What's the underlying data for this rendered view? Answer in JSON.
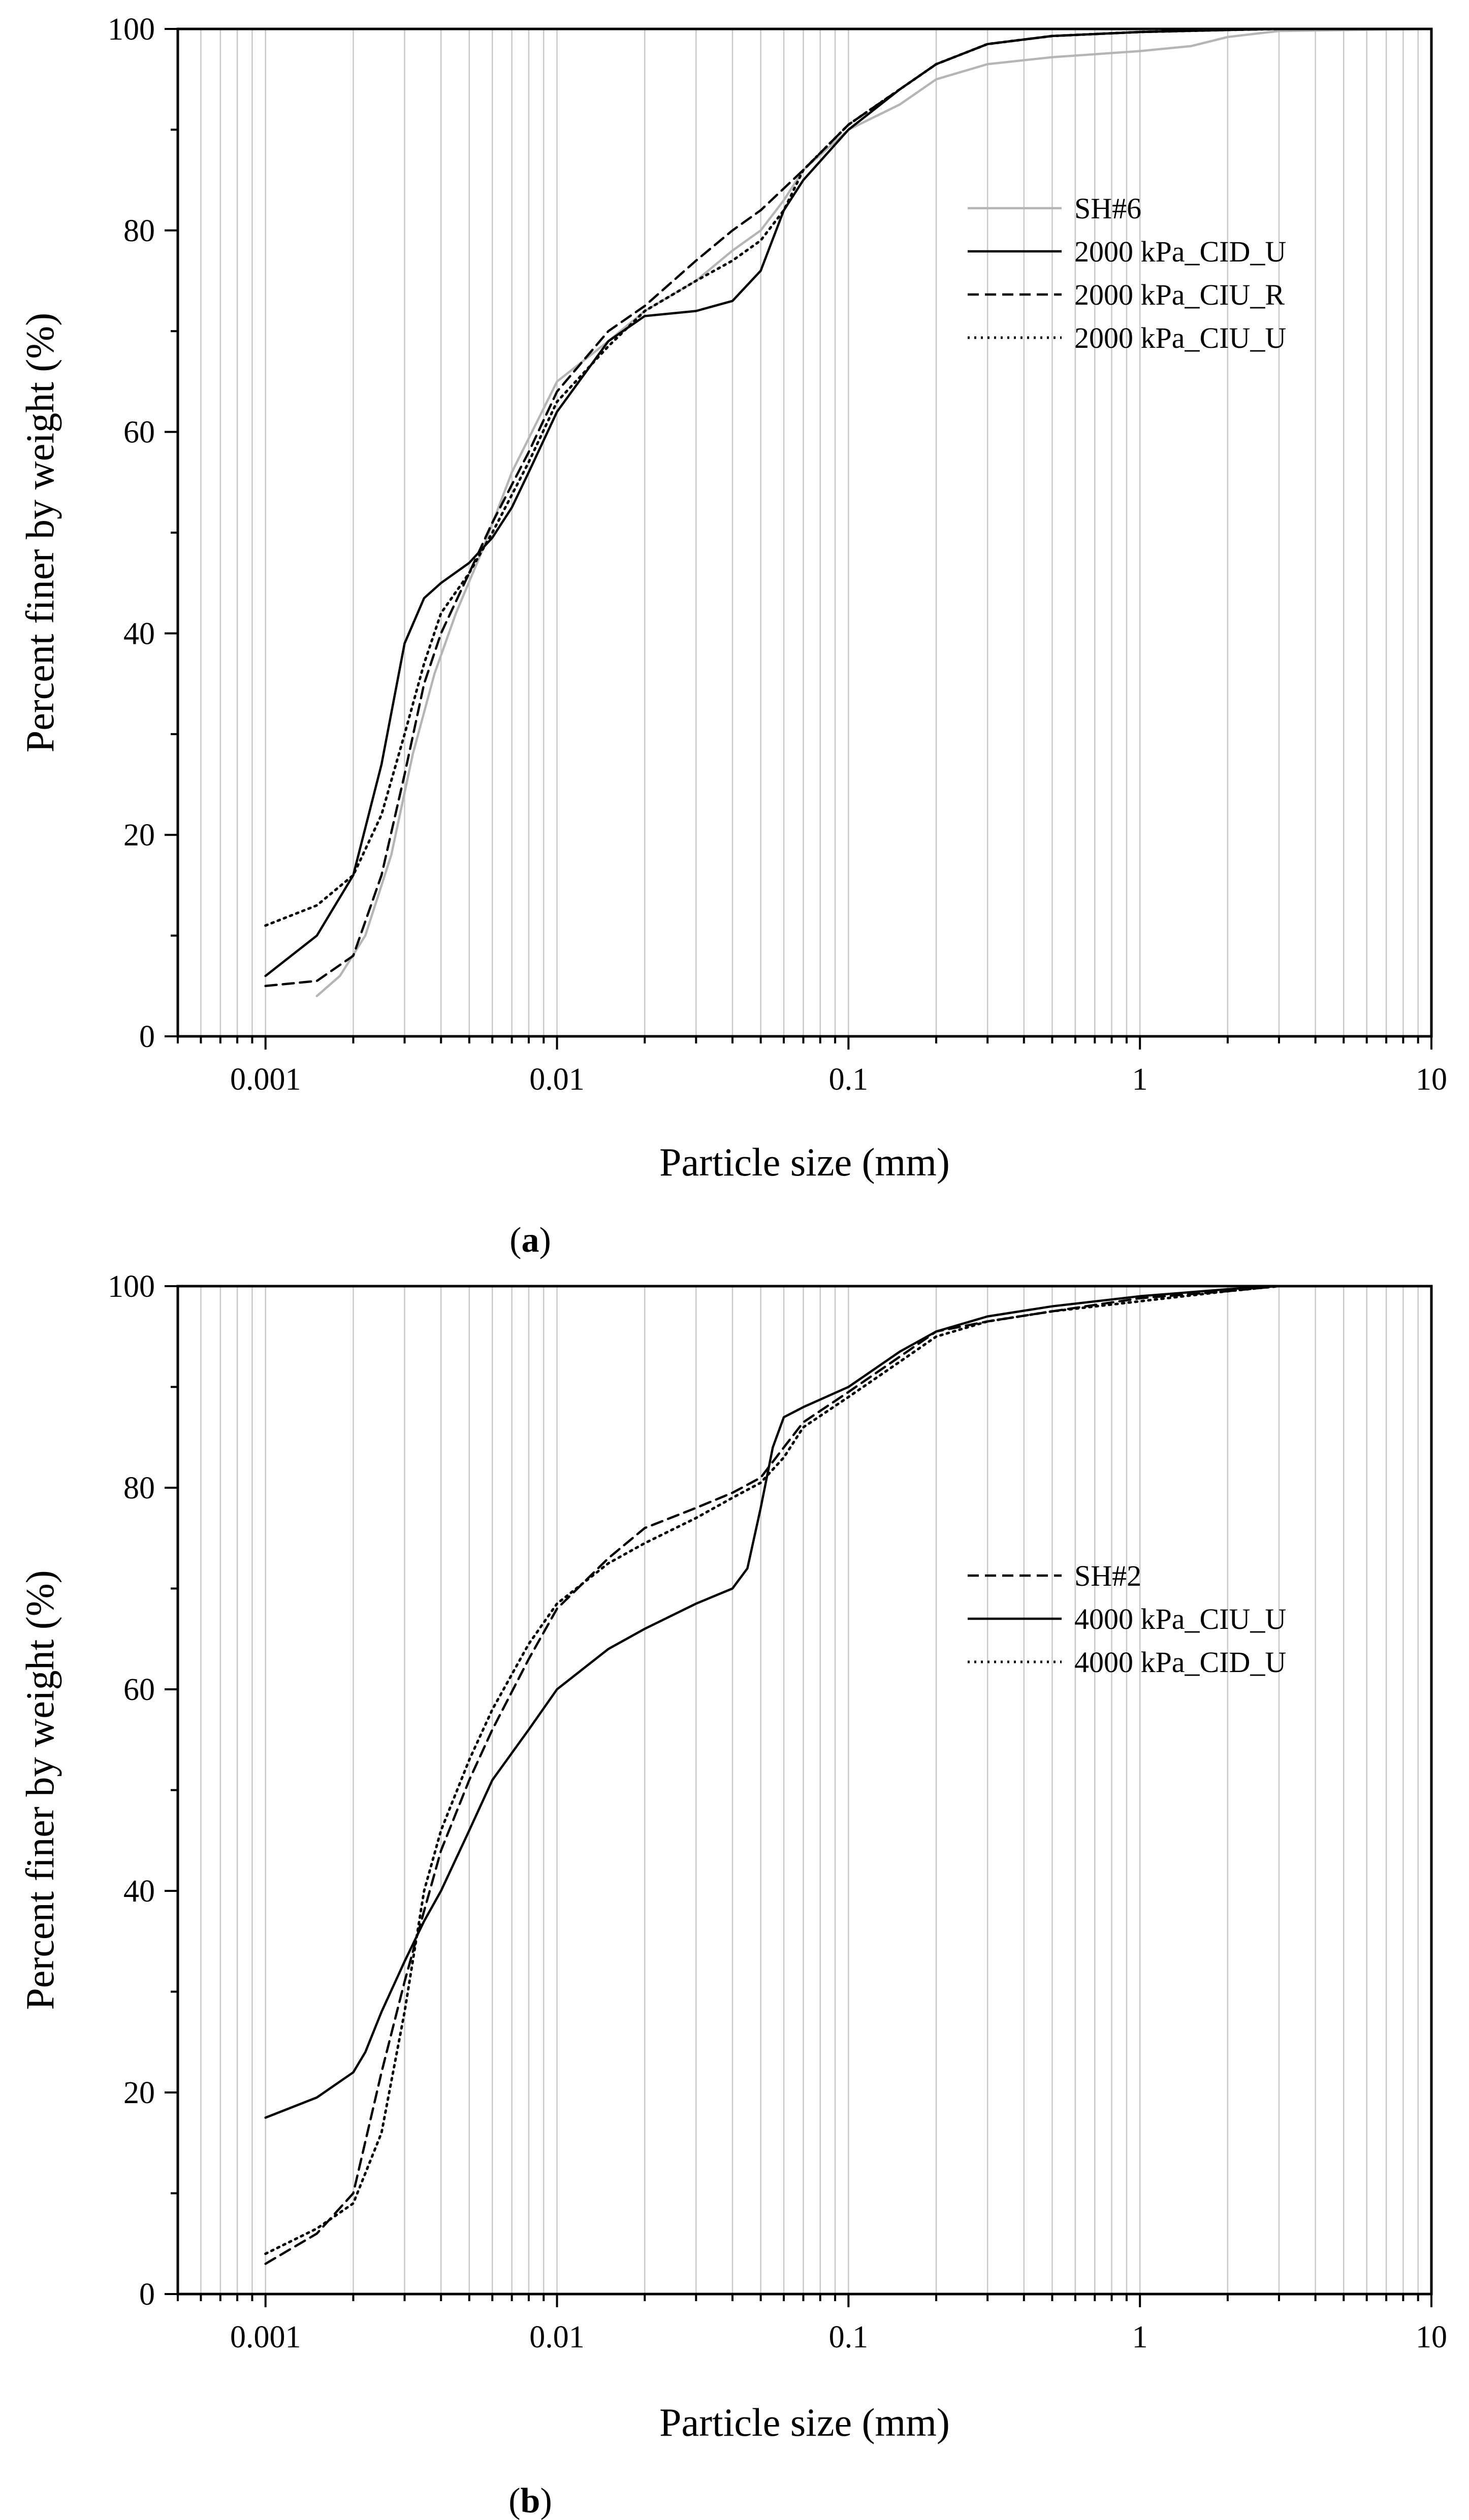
{
  "figure": {
    "panels": [
      {
        "label": "a"
      },
      {
        "label": "b"
      }
    ]
  },
  "chart_data": [
    {
      "type": "line",
      "panel": "a",
      "xlabel": "Particle size (mm)",
      "ylabel": "Percent finer by weight (%)",
      "xscale": "log",
      "xlim": [
        0.0005,
        10
      ],
      "ylim": [
        0,
        100
      ],
      "xticks": [
        0.001,
        0.01,
        0.1,
        1,
        10
      ],
      "xtick_labels": [
        "0.001",
        "0.01",
        "0.1",
        "1",
        "10"
      ],
      "yticks": [
        0,
        20,
        40,
        60,
        80,
        100
      ],
      "ytick_labels": [
        "0",
        "20",
        "40",
        "60",
        "80",
        "100"
      ],
      "grid": true,
      "legend_position": "top-right",
      "series": [
        {
          "name": "SH#6",
          "style": "solid",
          "color": "#b5b5b5",
          "x": [
            0.0015,
            0.0018,
            0.0022,
            0.0027,
            0.0032,
            0.0038,
            0.0045,
            0.0055,
            0.007,
            0.01,
            0.015,
            0.02,
            0.03,
            0.04,
            0.05,
            0.06,
            0.07,
            0.1,
            0.15,
            0.2,
            0.3,
            0.5,
            1,
            1.5,
            2,
            3,
            10
          ],
          "y": [
            4,
            6,
            10,
            18,
            28,
            36,
            42,
            48,
            56,
            65,
            69,
            72,
            75,
            78,
            80,
            83,
            86,
            90,
            92.5,
            95,
            96.5,
            97.2,
            97.8,
            98.3,
            99.2,
            99.8,
            100
          ]
        },
        {
          "name": "2000 kPa_CID_U",
          "style": "solid",
          "color": "#000000",
          "x": [
            0.001,
            0.0015,
            0.002,
            0.0025,
            0.003,
            0.0035,
            0.004,
            0.005,
            0.006,
            0.007,
            0.008,
            0.01,
            0.015,
            0.02,
            0.03,
            0.04,
            0.05,
            0.06,
            0.07,
            0.1,
            0.15,
            0.2,
            0.3,
            0.5,
            1,
            2,
            3,
            10
          ],
          "y": [
            6,
            10,
            16,
            27,
            39,
            43.5,
            45,
            47,
            49.5,
            52.5,
            56,
            62,
            69,
            71.5,
            72,
            73,
            76,
            82,
            85,
            90,
            94,
            96.5,
            98.5,
            99.3,
            99.7,
            99.9,
            100,
            100
          ]
        },
        {
          "name": "2000 kPa_CIU_R",
          "style": "dashed",
          "color": "#000000",
          "x": [
            0.001,
            0.0015,
            0.002,
            0.0025,
            0.003,
            0.0035,
            0.004,
            0.005,
            0.006,
            0.008,
            0.01,
            0.015,
            0.02,
            0.03,
            0.04,
            0.05,
            0.07,
            0.1,
            0.15,
            0.2,
            0.3,
            0.5,
            1,
            2,
            3,
            10
          ],
          "y": [
            5,
            5.5,
            8,
            16,
            26,
            35,
            40,
            46,
            51,
            58,
            64,
            70,
            72.5,
            77,
            80,
            82,
            86,
            90.5,
            94,
            96.5,
            98.5,
            99.3,
            99.7,
            99.9,
            100,
            100
          ]
        },
        {
          "name": "2000 kPa_CIU_U",
          "style": "dotted",
          "color": "#000000",
          "x": [
            0.001,
            0.0015,
            0.002,
            0.0025,
            0.003,
            0.0035,
            0.004,
            0.005,
            0.006,
            0.008,
            0.01,
            0.015,
            0.02,
            0.03,
            0.04,
            0.05,
            0.06,
            0.07,
            0.1,
            0.15,
            0.2,
            0.3,
            0.5,
            1,
            2,
            3,
            10
          ],
          "y": [
            11,
            13,
            16,
            22,
            30,
            37,
            42,
            46,
            50,
            57,
            63,
            68.5,
            72,
            75,
            77,
            79,
            82,
            86,
            90.5,
            94,
            96.5,
            98.5,
            99.3,
            99.7,
            99.9,
            100,
            100
          ]
        }
      ]
    },
    {
      "type": "line",
      "panel": "b",
      "xlabel": "Particle size (mm)",
      "ylabel": "Percent finer by weight (%)",
      "xscale": "log",
      "xlim": [
        0.0005,
        10
      ],
      "ylim": [
        0,
        100
      ],
      "xticks": [
        0.001,
        0.01,
        0.1,
        1,
        10
      ],
      "xtick_labels": [
        "0.001",
        "0.01",
        "0.1",
        "1",
        "10"
      ],
      "yticks": [
        0,
        20,
        40,
        60,
        80,
        100
      ],
      "ytick_labels": [
        "0",
        "20",
        "40",
        "60",
        "80",
        "100"
      ],
      "grid": true,
      "legend_position": "right",
      "series": [
        {
          "name": "SH#2",
          "style": "dashed",
          "color": "#000000",
          "x": [
            0.001,
            0.0015,
            0.002,
            0.0025,
            0.003,
            0.0035,
            0.004,
            0.005,
            0.006,
            0.008,
            0.01,
            0.015,
            0.02,
            0.03,
            0.04,
            0.05,
            0.06,
            0.07,
            0.1,
            0.15,
            0.2,
            0.3,
            0.5,
            1,
            2,
            3
          ],
          "y": [
            3,
            6,
            10,
            22,
            31,
            38,
            44,
            51,
            56,
            63,
            68,
            73,
            76,
            78,
            79.5,
            81,
            84,
            86.5,
            89.5,
            93,
            95.5,
            96.5,
            97.5,
            98.8,
            99.5,
            100
          ]
        },
        {
          "name": "4000 kPa_CIU_U",
          "style": "solid",
          "color": "#000000",
          "x": [
            0.001,
            0.0015,
            0.002,
            0.0022,
            0.0025,
            0.003,
            0.0035,
            0.004,
            0.005,
            0.006,
            0.008,
            0.01,
            0.015,
            0.02,
            0.03,
            0.04,
            0.045,
            0.05,
            0.055,
            0.06,
            0.07,
            0.1,
            0.15,
            0.2,
            0.3,
            0.5,
            1,
            2,
            3
          ],
          "y": [
            17.5,
            19.5,
            22,
            24,
            28,
            33,
            37,
            40,
            46,
            51,
            56,
            60,
            64,
            66,
            68.5,
            70,
            72,
            78,
            84,
            87,
            88,
            90,
            93.5,
            95.5,
            97,
            98,
            99,
            99.7,
            100
          ]
        },
        {
          "name": "4000 kPa_CID_U",
          "style": "dotted",
          "color": "#000000",
          "x": [
            0.001,
            0.0015,
            0.002,
            0.0025,
            0.003,
            0.0035,
            0.004,
            0.005,
            0.006,
            0.008,
            0.01,
            0.015,
            0.02,
            0.03,
            0.04,
            0.05,
            0.06,
            0.07,
            0.1,
            0.15,
            0.2,
            0.3,
            0.5,
            1,
            2,
            3
          ],
          "y": [
            4,
            6.5,
            9,
            16,
            28,
            40,
            46,
            53,
            58,
            64.5,
            68.5,
            72.5,
            74.5,
            77,
            79,
            80.5,
            83,
            86,
            89,
            92.5,
            95,
            96.5,
            97.5,
            98.5,
            99.5,
            100
          ]
        }
      ]
    }
  ]
}
